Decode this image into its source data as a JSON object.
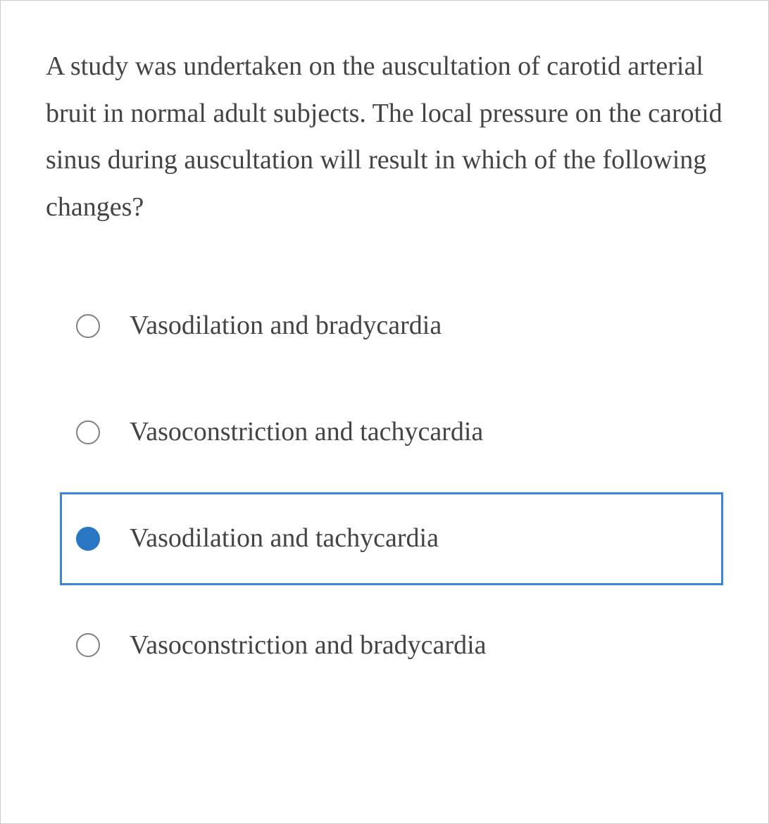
{
  "question": {
    "text": "A study was undertaken on the auscultation of carotid arterial bruit in normal adult subjects. The local pressure on the carotid sinus during auscultation will result in which of the following changes?"
  },
  "options": [
    {
      "label": "Vasodilation and bradycardia",
      "selected": false
    },
    {
      "label": "Vasoconstriction and tachycardia",
      "selected": false
    },
    {
      "label": "Vasodilation and tachycardia",
      "selected": true
    },
    {
      "label": "Vasoconstriction and bradycardia",
      "selected": false
    }
  ],
  "colors": {
    "selected_border": "#3a85d8",
    "radio_filled": "#2876c4",
    "radio_border": "#808080",
    "text_color": "#444444",
    "background": "#ffffff"
  },
  "typography": {
    "question_fontsize": 38,
    "option_fontsize": 38,
    "font_family": "Comic Sans MS"
  }
}
